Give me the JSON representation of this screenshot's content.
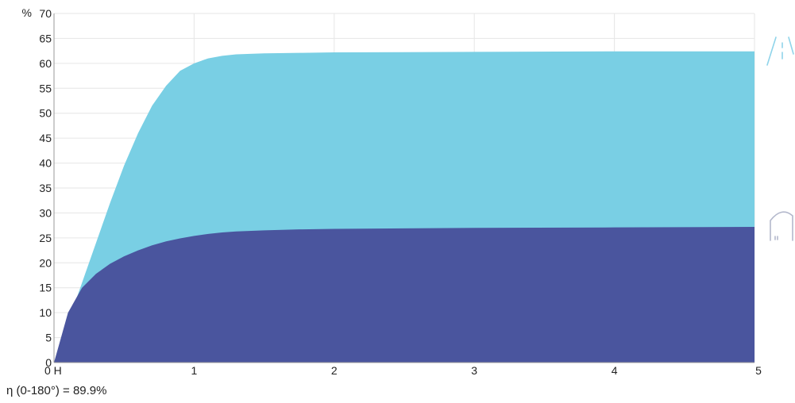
{
  "chart_data": {
    "type": "area",
    "y_unit_label": "%",
    "xlim": [
      0,
      5
    ],
    "ylim": [
      0,
      70
    ],
    "x_ticks": [
      {
        "value": 0,
        "label": "0 H"
      },
      {
        "value": 1,
        "label": "1"
      },
      {
        "value": 2,
        "label": "2"
      },
      {
        "value": 3,
        "label": "3"
      },
      {
        "value": 4,
        "label": "4"
      },
      {
        "value": 5,
        "label": "5"
      }
    ],
    "y_ticks": [
      0,
      5,
      10,
      15,
      20,
      25,
      30,
      35,
      40,
      45,
      50,
      55,
      60,
      65,
      70
    ],
    "grid": true,
    "stacked": false,
    "series": [
      {
        "color": "#79cfe4",
        "x": [
          0,
          0.1,
          0.2,
          0.3,
          0.4,
          0.5,
          0.6,
          0.7,
          0.8,
          0.9,
          1.0,
          1.1,
          1.2,
          1.3,
          1.5,
          1.75,
          2,
          3,
          4,
          5
        ],
        "y": [
          0,
          8,
          16,
          24,
          32,
          39.5,
          46,
          51.5,
          55.5,
          58.5,
          60.0,
          61.0,
          61.5,
          61.8,
          62.0,
          62.1,
          62.2,
          62.3,
          62.4,
          62.4
        ]
      },
      {
        "color": "#4a559e",
        "x": [
          0,
          0.05,
          0.1,
          0.2,
          0.3,
          0.4,
          0.5,
          0.6,
          0.7,
          0.8,
          0.9,
          1.0,
          1.1,
          1.2,
          1.3,
          1.5,
          1.75,
          2,
          3,
          4,
          5
        ],
        "y": [
          0,
          5,
          10,
          15,
          17.8,
          19.8,
          21.3,
          22.5,
          23.5,
          24.3,
          24.9,
          25.4,
          25.8,
          26.1,
          26.3,
          26.5,
          26.7,
          26.8,
          27.0,
          27.1,
          27.2
        ]
      }
    ]
  },
  "footer": {
    "efficiency_text": "η (0-180°) = 89.9%"
  },
  "icons": {
    "top": "road-perspective-icon",
    "bottom": "tunnel-arch-icon"
  }
}
